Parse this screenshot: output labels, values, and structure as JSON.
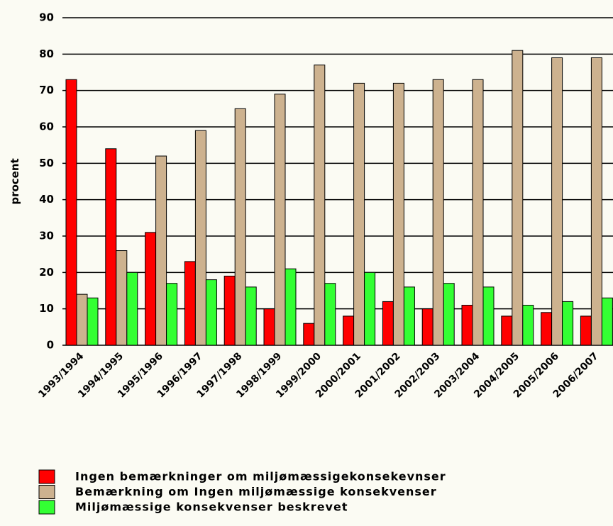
{
  "chart_data": {
    "type": "bar",
    "ylabel": "procent",
    "categories": [
      "1993/1994",
      "1994/1995",
      "1995/1996",
      "1996/1997",
      "1997/1998",
      "1998/1999",
      "1999/2000",
      "2000/2001",
      "2001/2002",
      "2002/2003",
      "2003/2004",
      "2004/2005",
      "2005/2006",
      "2006/2007"
    ],
    "series": [
      {
        "name": "Ingen bemærkninger om miljømæssigekonsekevnser",
        "color": "#ff0000",
        "values": [
          73,
          54,
          31,
          23,
          19,
          10,
          6,
          8,
          12,
          10,
          11,
          8,
          9,
          8
        ]
      },
      {
        "name": "Bemærkning om Ingen miljømæssige konsekvenser",
        "color": "#cdb28f",
        "values": [
          14,
          26,
          52,
          59,
          65,
          69,
          77,
          72,
          72,
          73,
          73,
          81,
          79,
          79
        ]
      },
      {
        "name": "Miljømæssige konsekvenser beskrevet",
        "color": "#33ff33",
        "values": [
          13,
          20,
          17,
          18,
          16,
          21,
          17,
          20,
          16,
          17,
          16,
          11,
          12,
          13
        ]
      }
    ],
    "ylim": [
      0,
      90
    ],
    "yticks": [
      0,
      10,
      20,
      30,
      40,
      50,
      60,
      70,
      80,
      90
    ],
    "grid": true,
    "legend": "bottom"
  }
}
